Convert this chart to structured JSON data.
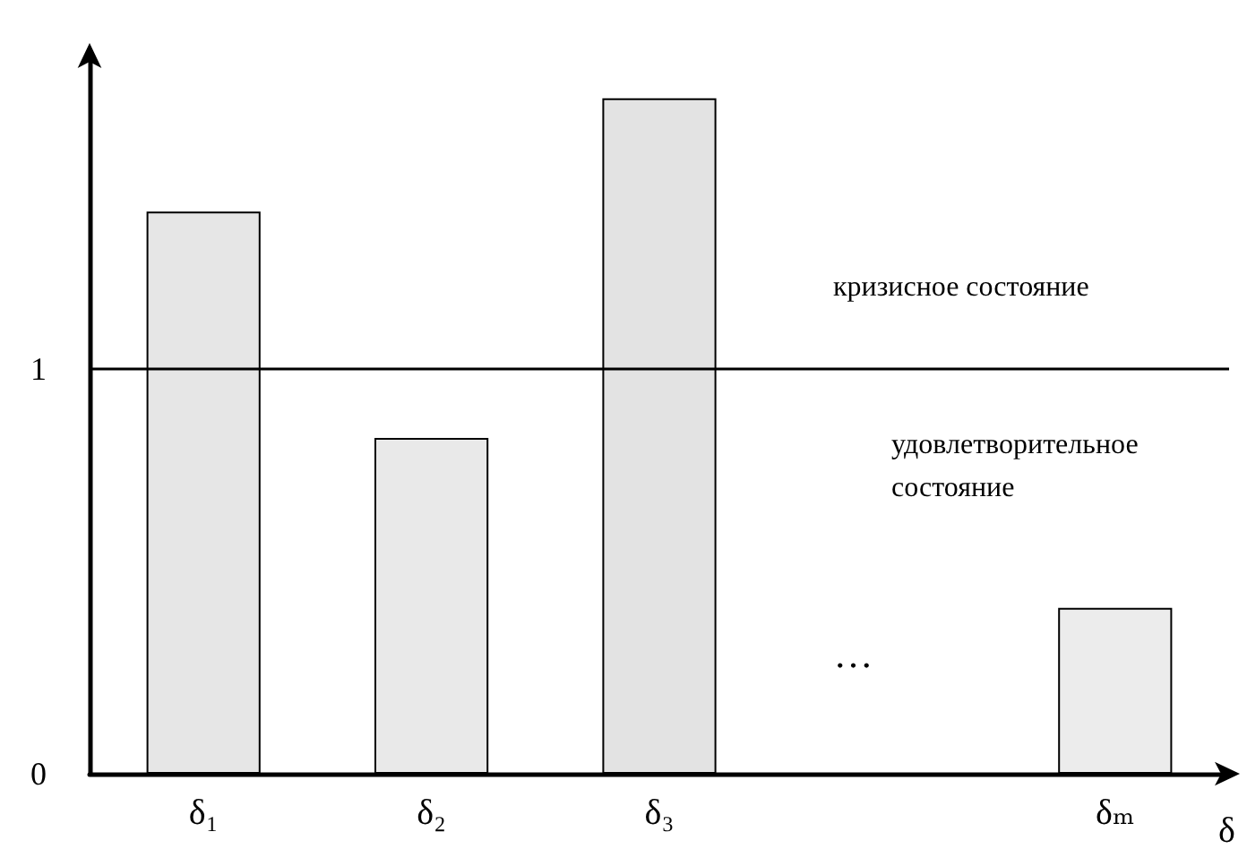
{
  "chart_data": {
    "type": "bar",
    "categories": [
      "δ₁",
      "δ₂",
      "δ₃",
      null,
      "δₘ"
    ],
    "values": [
      1.39,
      0.83,
      1.67,
      null,
      0.41
    ],
    "colors": [
      "#e6e6e6",
      "#e9e9e9",
      "#e3e3e3",
      null,
      "#ececec"
    ],
    "xlabel": "δ",
    "ylim": [
      0,
      1.78
    ],
    "yticks": [
      0,
      1
    ],
    "ref_lines": [
      {
        "axis": "y",
        "value": 1,
        "label": null,
        "color": "#000000"
      }
    ],
    "annotations": [
      "кризисное состояние",
      "удовлетворительное состояние",
      "…"
    ],
    "grid": false
  }
}
